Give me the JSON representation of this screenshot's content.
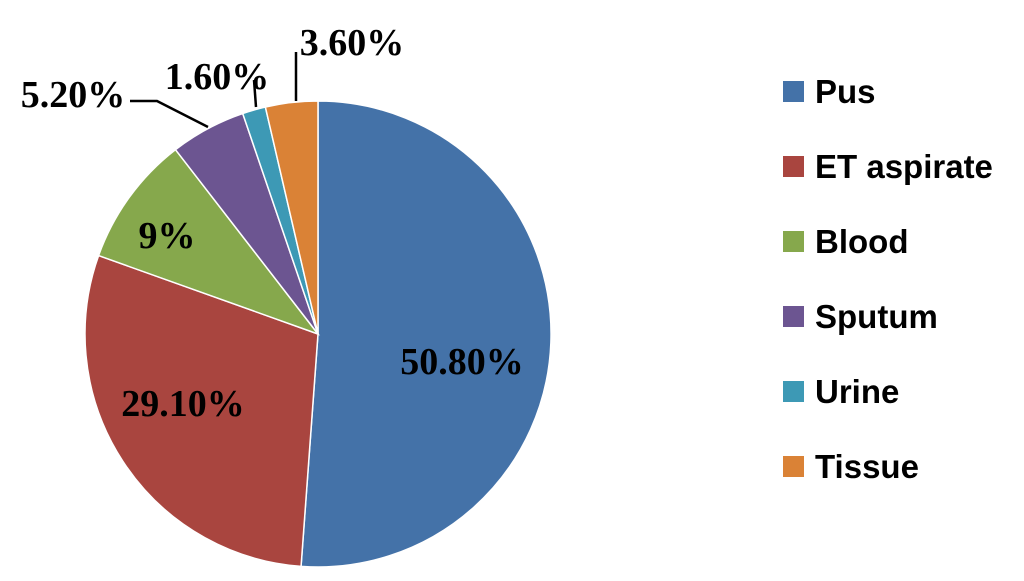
{
  "chart_data": {
    "type": "pie",
    "title": "",
    "start_angle_deg": 90,
    "direction": "clockwise",
    "legend_position": "right",
    "slices": [
      {
        "category": "Pus",
        "value": 50.8,
        "label": "50.80%",
        "color": "#4472A8"
      },
      {
        "category": "ET aspirate",
        "value": 29.1,
        "label": "29.10%",
        "color": "#A9453F"
      },
      {
        "category": "Blood",
        "value": 9.0,
        "label": "9%",
        "color": "#86A84C"
      },
      {
        "category": "Sputum",
        "value": 5.2,
        "label": "5.20%",
        "color": "#6C5591"
      },
      {
        "category": "Urine",
        "value": 1.6,
        "label": "1.60%",
        "color": "#3D99B5"
      },
      {
        "category": "Tissue",
        "value": 3.6,
        "label": "3.60%",
        "color": "#DA8236"
      }
    ]
  }
}
